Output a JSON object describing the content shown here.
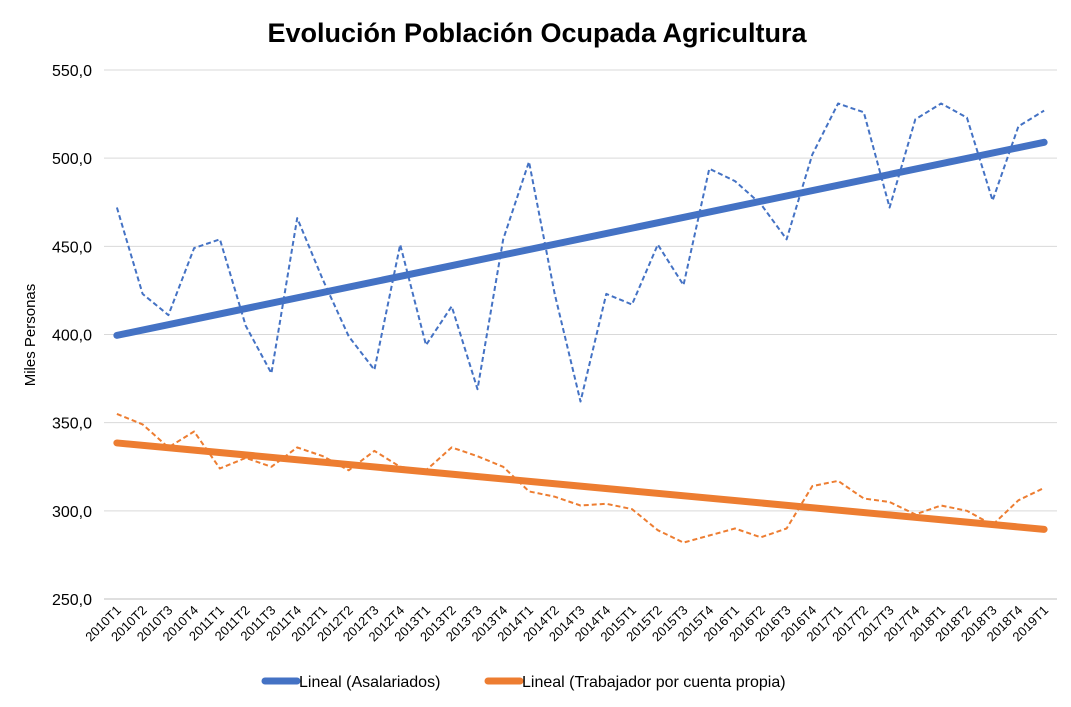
{
  "chart_data": {
    "type": "line",
    "title": "Evolución Población Ocupada Agricultura",
    "ylabel": "Miles Personas",
    "xlabel": "",
    "ylim": [
      250,
      550
    ],
    "yticks": [
      "250,0",
      "300,0",
      "350,0",
      "400,0",
      "450,0",
      "500,0",
      "550,0"
    ],
    "ytick_values": [
      250,
      300,
      350,
      400,
      450,
      500,
      550
    ],
    "grid": true,
    "legend_position": "bottom",
    "categories": [
      "2010T1",
      "2010T2",
      "2010T3",
      "2010T4",
      "2011T1",
      "2011T2",
      "2011T3",
      "2011T4",
      "2012T1",
      "2012T2",
      "2012T3",
      "2012T4",
      "2013T1",
      "2013T2",
      "2013T3",
      "2013T4",
      "2014T1",
      "2014T2",
      "2014T3",
      "2014T4",
      "2015T1",
      "2015T2",
      "2015T3",
      "2015T4",
      "2016T1",
      "2016T2",
      "2016T3",
      "2016T4",
      "2017T1",
      "2017T2",
      "2017T3",
      "2017T4",
      "2018T1",
      "2018T2",
      "2018T3",
      "2018T4",
      "2019T1"
    ],
    "series": [
      {
        "color": "#4472c4",
        "style": "dashed",
        "values": [
          472,
          423,
          411,
          449,
          454,
          405,
          378,
          466,
          431,
          399,
          380,
          451,
          394,
          416,
          369,
          454,
          498,
          423,
          362,
          423,
          417,
          451,
          428,
          494,
          487,
          474,
          454,
          502,
          531,
          526,
          472,
          522,
          531,
          523,
          476,
          518,
          527
        ]
      },
      {
        "color": "#ed7d31",
        "style": "dashed",
        "values": [
          355,
          349,
          336,
          345,
          324,
          330,
          325,
          336,
          331,
          323,
          334,
          325,
          323,
          336,
          331,
          325,
          311,
          308,
          303,
          304,
          301,
          289,
          282,
          286,
          290,
          285,
          290,
          314,
          317,
          307,
          305,
          298,
          303,
          300,
          292,
          306,
          313
        ]
      }
    ],
    "trendlines": [
      {
        "name": "Lineal (Asalariados)",
        "color": "#4472c4",
        "start": 399.5,
        "end": 509
      },
      {
        "name": "Lineal (Trabajador por cuenta propia)",
        "color": "#ed7d31",
        "start": 338.5,
        "end": 289.5
      }
    ]
  }
}
